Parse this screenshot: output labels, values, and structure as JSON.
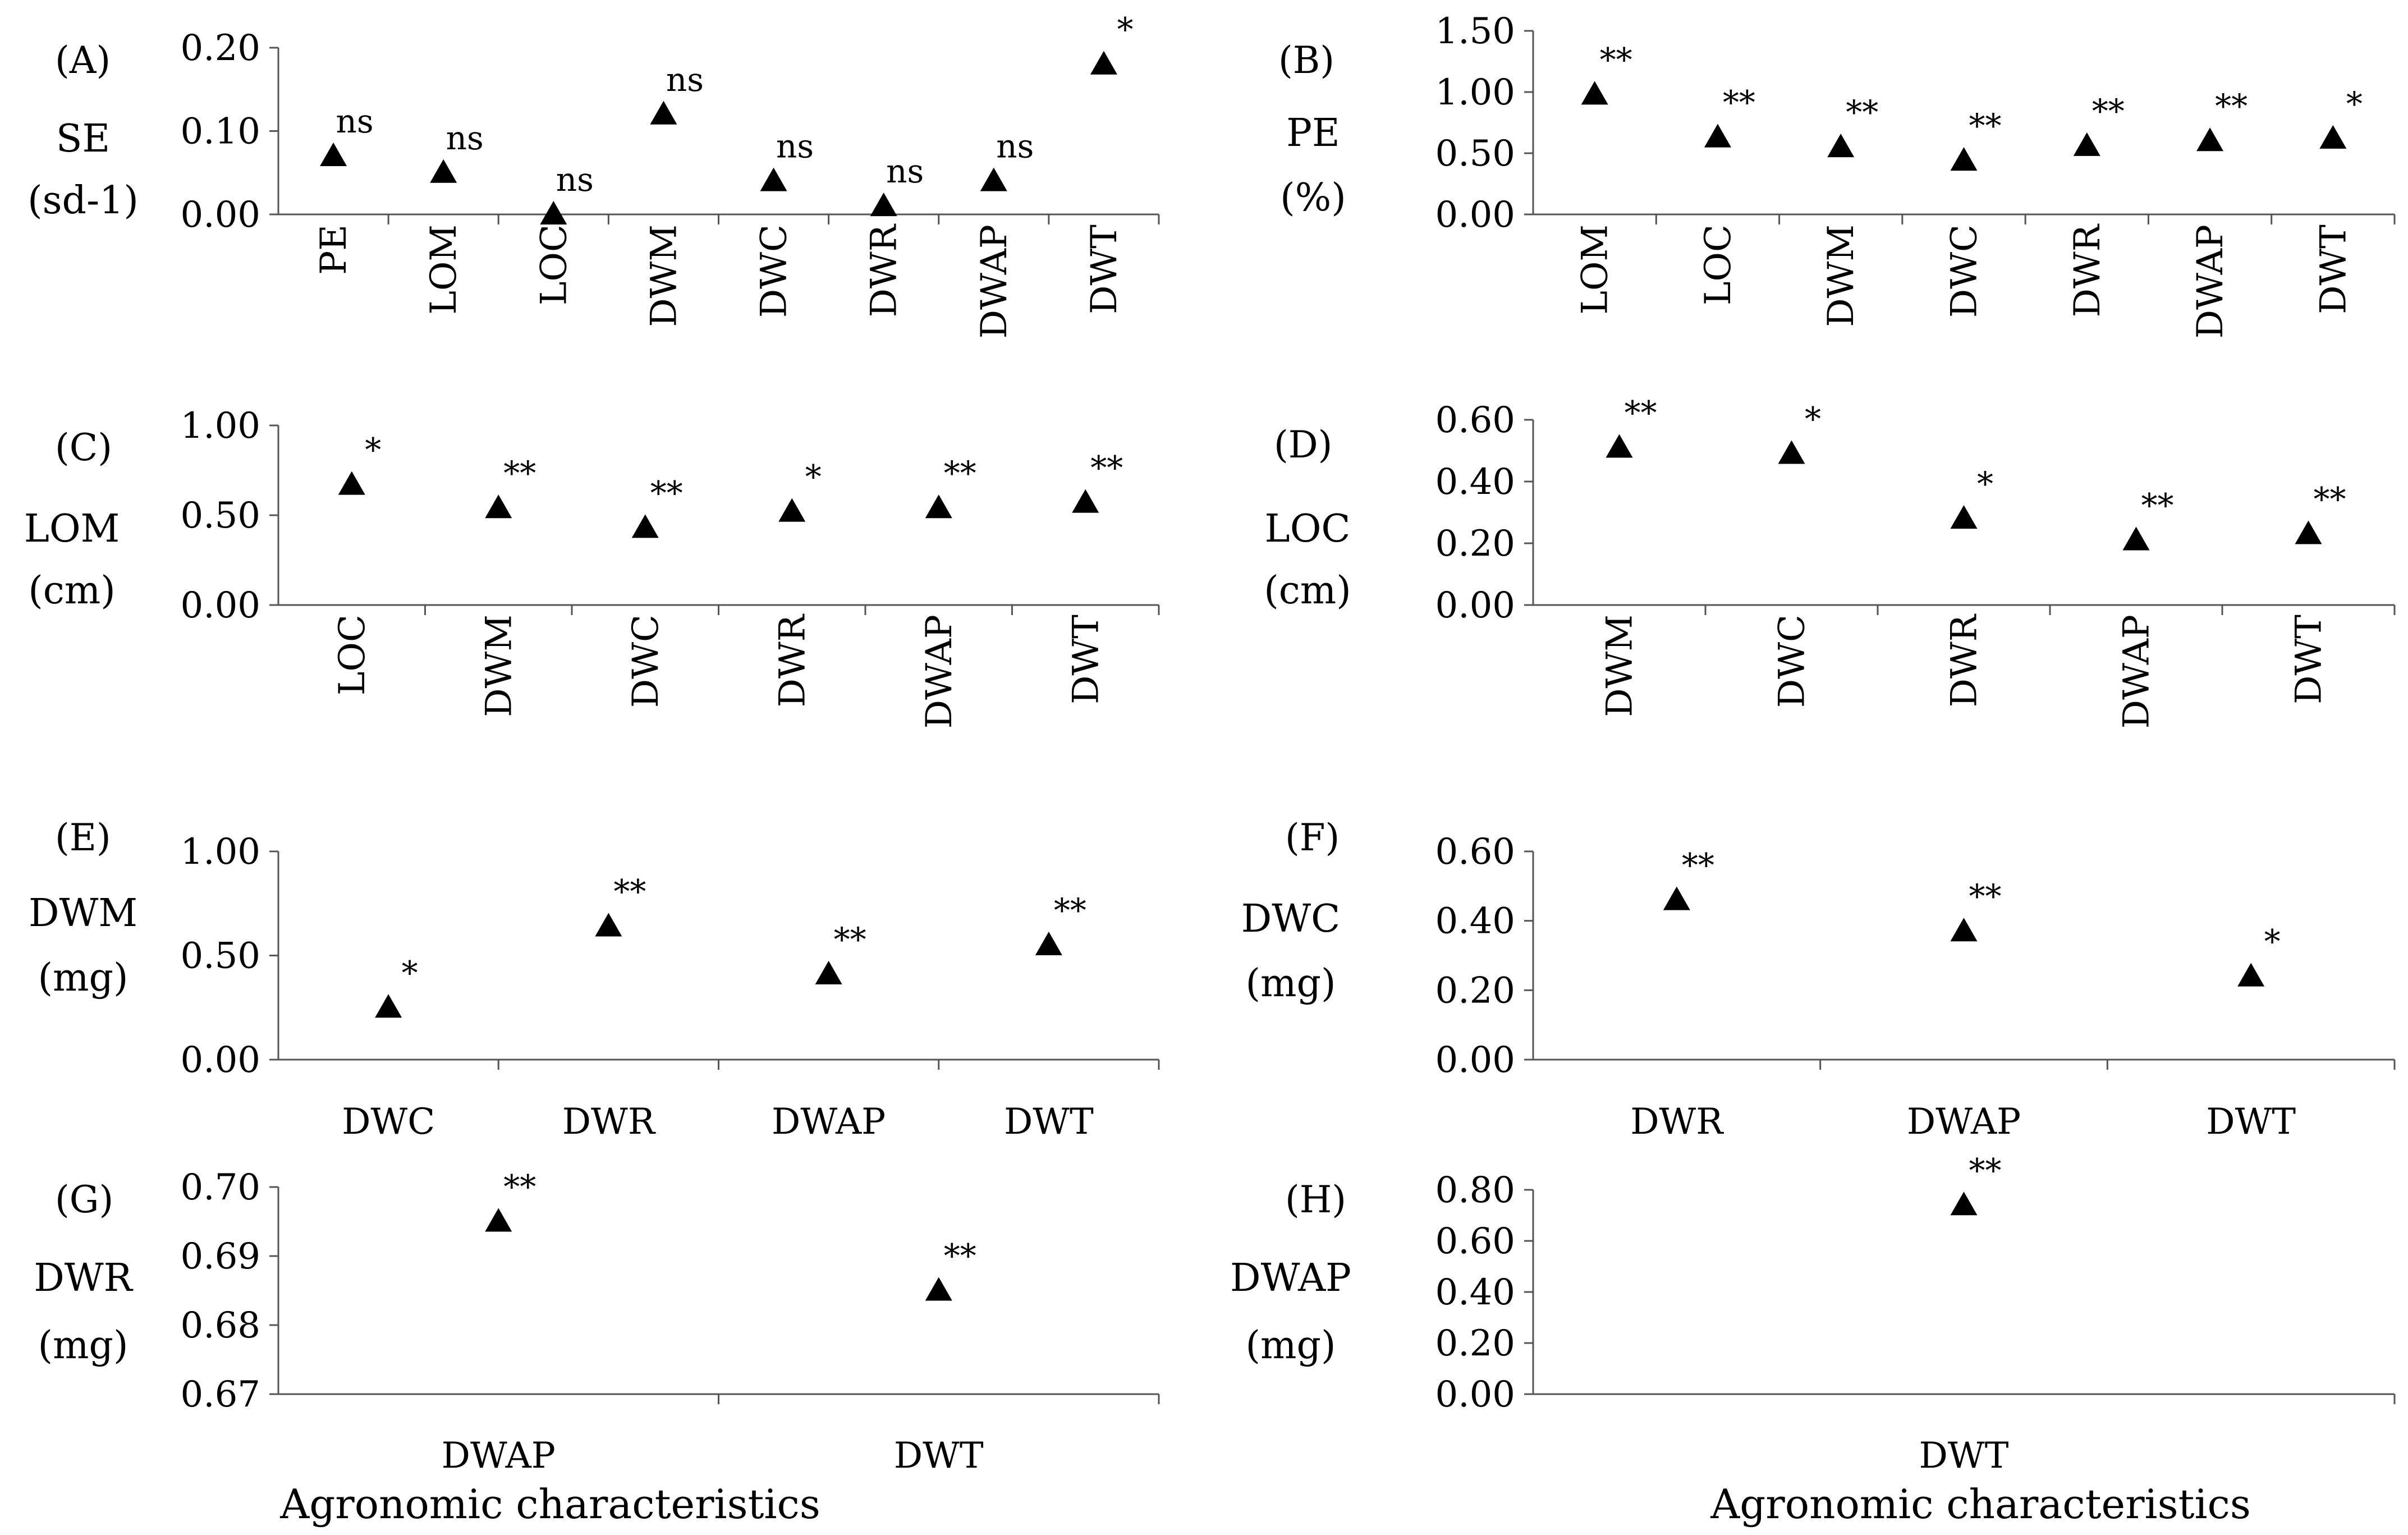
{
  "figure": {
    "x_title": "Agronomic characteristics"
  },
  "chart_data": [
    {
      "type": "scatter",
      "panel": "(A)",
      "ylabel": [
        "SE",
        "(sd-1)"
      ],
      "yticks": [
        "0.20",
        "0.10",
        "0.00"
      ],
      "ylim": [
        0,
        0.2
      ],
      "marker": "triangle",
      "categories": [
        "PE",
        "LOM",
        "LOC",
        "DWM",
        "DWC",
        "DWR",
        "DWAP",
        "DWT"
      ],
      "values": [
        0.07,
        0.05,
        0.0,
        0.12,
        0.04,
        0.01,
        0.04,
        0.18
      ],
      "significance": [
        "ns",
        "ns",
        "ns",
        "ns",
        "ns",
        "ns",
        "ns",
        "*"
      ],
      "rotated_xticks": true
    },
    {
      "type": "scatter",
      "panel": "(B)",
      "ylabel": [
        "PE",
        "(%)"
      ],
      "yticks": [
        "1.50",
        "1.00",
        "0.50",
        "0.00"
      ],
      "ylim": [
        0,
        1.5
      ],
      "marker": "triangle",
      "categories": [
        "LOM",
        "LOC",
        "DWM",
        "DWC",
        "DWR",
        "DWAP",
        "DWT"
      ],
      "values": [
        0.98,
        0.63,
        0.55,
        0.44,
        0.56,
        0.6,
        0.62
      ],
      "significance": [
        "**",
        "**",
        "**",
        "**",
        "**",
        "**",
        "*"
      ],
      "rotated_xticks": true
    },
    {
      "type": "scatter",
      "panel": "(C)",
      "ylabel": [
        "LOM",
        "(cm)"
      ],
      "yticks": [
        "1.00",
        "0.50",
        "0.00"
      ],
      "ylim": [
        0,
        1
      ],
      "marker": "triangle",
      "categories": [
        "LOC",
        "DWM",
        "DWC",
        "DWR",
        "DWAP",
        "DWT"
      ],
      "values": [
        0.67,
        0.54,
        0.43,
        0.52,
        0.54,
        0.57
      ],
      "significance": [
        "*",
        "**",
        "**",
        "*",
        "**",
        "**"
      ],
      "rotated_xticks": true
    },
    {
      "type": "scatter",
      "panel": "(D)",
      "ylabel": [
        "LOC",
        "(cm)"
      ],
      "yticks": [
        "0.60",
        "0.40",
        "0.20",
        "0.00"
      ],
      "ylim": [
        0,
        0.6
      ],
      "marker": "triangle",
      "categories": [
        "DWM",
        "DWC",
        "DWR",
        "DWAP",
        "DWT"
      ],
      "values": [
        0.51,
        0.49,
        0.28,
        0.21,
        0.23
      ],
      "significance": [
        "**",
        "*",
        "*",
        "**",
        "**"
      ],
      "rotated_xticks": true
    },
    {
      "type": "scatter",
      "panel": "(E)",
      "ylabel": [
        "DWM",
        "(mg)"
      ],
      "yticks": [
        "1.00",
        "0.50",
        "0.00"
      ],
      "ylim": [
        0,
        1
      ],
      "marker": "triangle",
      "categories": [
        "DWC",
        "DWR",
        "DWAP",
        "DWT"
      ],
      "values": [
        0.25,
        0.64,
        0.41,
        0.55
      ],
      "significance": [
        "*",
        "**",
        "**",
        "**"
      ],
      "rotated_xticks": false
    },
    {
      "type": "scatter",
      "panel": "(F)",
      "ylabel": [
        "DWC",
        "(mg)"
      ],
      "yticks": [
        "0.60",
        "0.40",
        "0.20",
        "0.00"
      ],
      "ylim": [
        0,
        0.6
      ],
      "marker": "triangle",
      "categories": [
        "DWR",
        "DWAP",
        "DWT"
      ],
      "values": [
        0.46,
        0.37,
        0.24
      ],
      "significance": [
        "**",
        "**",
        "*"
      ],
      "rotated_xticks": false
    },
    {
      "type": "scatter",
      "panel": "(G)",
      "ylabel": [
        "DWR",
        "(mg)"
      ],
      "yticks": [
        "0.70",
        "0.69",
        "0.68",
        "0.67"
      ],
      "ylim": [
        0.67,
        0.7
      ],
      "marker": "triangle",
      "categories": [
        "DWAP",
        "DWT"
      ],
      "values": [
        0.695,
        0.685
      ],
      "significance": [
        "**",
        "**"
      ],
      "rotated_xticks": false,
      "xtitle": true
    },
    {
      "type": "scatter",
      "panel": "(H)",
      "ylabel": [
        "DWAP",
        "(mg)"
      ],
      "yticks": [
        "0.80",
        "0.60",
        "0.40",
        "0.20",
        "0.00"
      ],
      "ylim": [
        0,
        0.8
      ],
      "marker": "triangle",
      "categories": [
        "DWT"
      ],
      "values": [
        0.74
      ],
      "significance": [
        "**"
      ],
      "rotated_xticks": false,
      "xtitle": true
    }
  ]
}
